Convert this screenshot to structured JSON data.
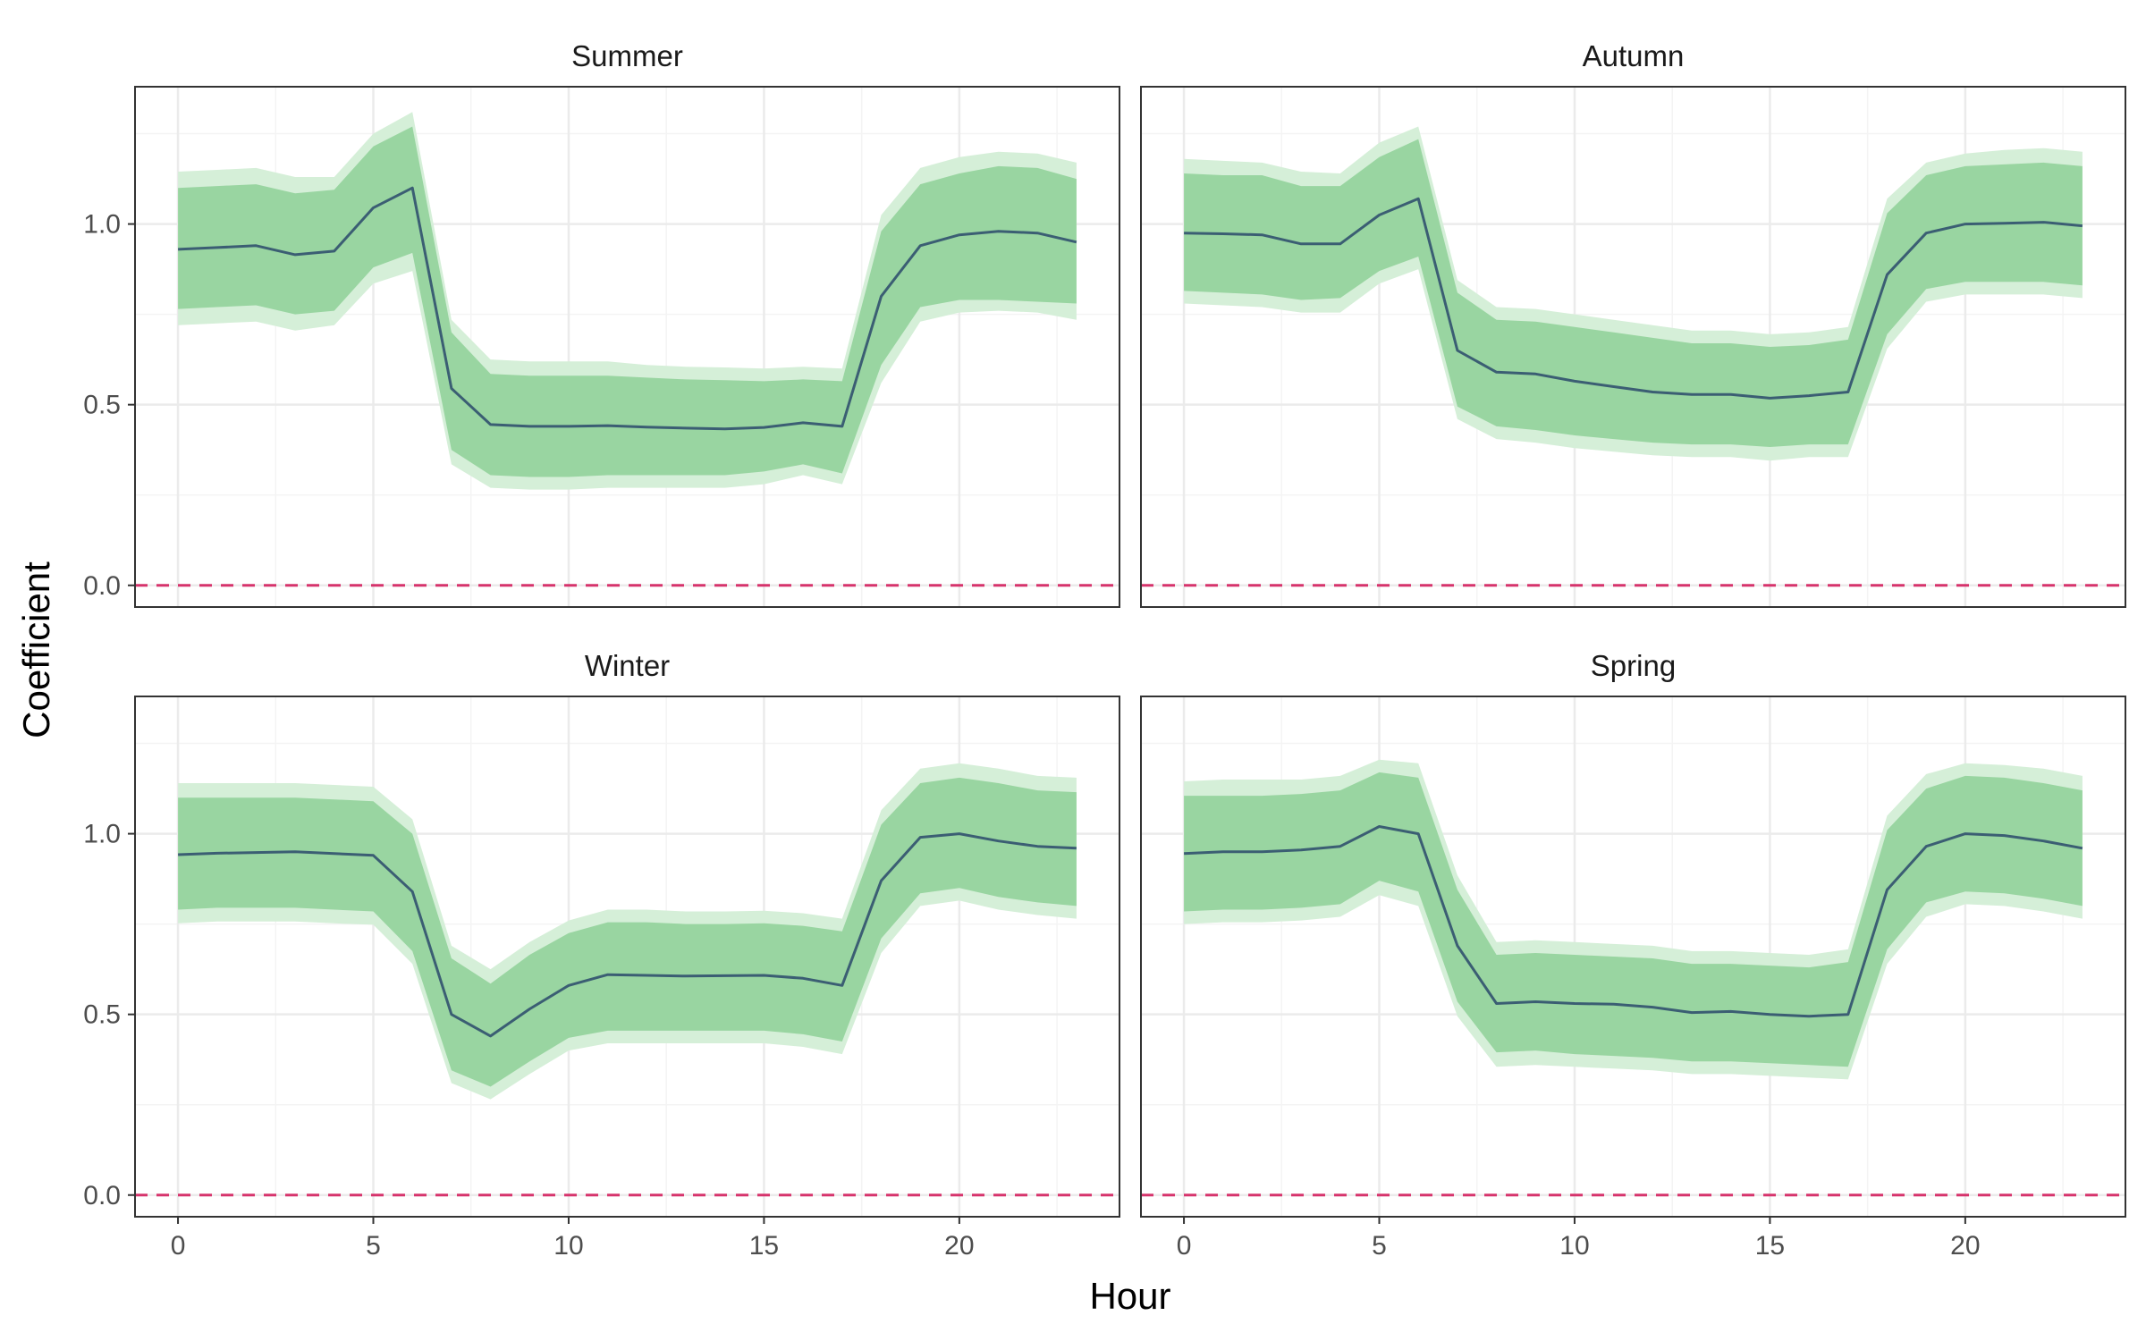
{
  "chart_data": {
    "type": "line",
    "xlabel": "Hour",
    "ylabel": "Coefficient",
    "xlim": [
      -1.1,
      24.1
    ],
    "ylim": [
      -0.06,
      1.38
    ],
    "x_ticks": [
      0,
      5,
      10,
      15,
      20
    ],
    "y_ticks": [
      0.0,
      0.5,
      1.0
    ],
    "y_tick_labels": [
      "0.0",
      "0.5",
      "1.0"
    ],
    "reference_line": {
      "y": 0,
      "style": "dashed",
      "color": "#d6336c"
    },
    "grid": true,
    "colors": {
      "line": "#3b5e73",
      "band_inner": "#99d5a1",
      "band_outer": "#d5efd8",
      "panel_border": "#333333",
      "grid_major": "#ebebeb",
      "grid_minor": "#f4f4f4"
    },
    "x": [
      0,
      1,
      2,
      3,
      4,
      5,
      6,
      7,
      8,
      9,
      10,
      11,
      12,
      13,
      14,
      15,
      16,
      17,
      18,
      19,
      20,
      21,
      22,
      23
    ],
    "panels": [
      {
        "title": "Summer",
        "values": [
          0.93,
          0.935,
          0.94,
          0.915,
          0.925,
          1.045,
          1.1,
          0.545,
          0.445,
          0.44,
          0.44,
          0.442,
          0.438,
          0.435,
          0.433,
          0.437,
          0.45,
          0.44,
          0.8,
          0.94,
          0.97,
          0.98,
          0.975,
          0.95
        ],
        "inner_low": [
          0.765,
          0.77,
          0.775,
          0.75,
          0.76,
          0.88,
          0.92,
          0.375,
          0.305,
          0.3,
          0.3,
          0.305,
          0.305,
          0.305,
          0.305,
          0.315,
          0.335,
          0.31,
          0.61,
          0.77,
          0.79,
          0.79,
          0.785,
          0.78
        ],
        "inner_high": [
          1.1,
          1.105,
          1.11,
          1.085,
          1.095,
          1.215,
          1.27,
          0.7,
          0.585,
          0.58,
          0.58,
          0.58,
          0.575,
          0.57,
          0.568,
          0.565,
          0.57,
          0.565,
          0.98,
          1.11,
          1.14,
          1.16,
          1.155,
          1.125
        ],
        "outer_low": [
          0.72,
          0.725,
          0.73,
          0.705,
          0.72,
          0.835,
          0.87,
          0.335,
          0.27,
          0.265,
          0.265,
          0.27,
          0.27,
          0.27,
          0.27,
          0.28,
          0.305,
          0.28,
          0.56,
          0.73,
          0.755,
          0.76,
          0.755,
          0.735
        ],
        "outer_high": [
          1.145,
          1.15,
          1.155,
          1.13,
          1.13,
          1.25,
          1.31,
          0.735,
          0.625,
          0.62,
          0.62,
          0.62,
          0.61,
          0.605,
          0.603,
          0.6,
          0.605,
          0.6,
          1.025,
          1.155,
          1.185,
          1.2,
          1.195,
          1.17
        ]
      },
      {
        "title": "Autumn",
        "values": [
          0.975,
          0.973,
          0.97,
          0.945,
          0.945,
          1.025,
          1.07,
          0.65,
          0.59,
          0.585,
          0.565,
          0.55,
          0.535,
          0.528,
          0.528,
          0.518,
          0.525,
          0.535,
          0.86,
          0.975,
          1.0,
          1.002,
          1.005,
          0.995
        ],
        "inner_low": [
          0.815,
          0.81,
          0.805,
          0.79,
          0.795,
          0.87,
          0.91,
          0.495,
          0.44,
          0.43,
          0.415,
          0.405,
          0.395,
          0.39,
          0.39,
          0.383,
          0.39,
          0.39,
          0.695,
          0.82,
          0.84,
          0.84,
          0.84,
          0.83
        ],
        "inner_high": [
          1.14,
          1.135,
          1.135,
          1.105,
          1.105,
          1.185,
          1.235,
          0.81,
          0.735,
          0.73,
          0.715,
          0.7,
          0.685,
          0.67,
          0.67,
          0.66,
          0.665,
          0.68,
          1.03,
          1.135,
          1.16,
          1.165,
          1.17,
          1.16
        ],
        "outer_low": [
          0.78,
          0.775,
          0.77,
          0.755,
          0.755,
          0.835,
          0.875,
          0.46,
          0.405,
          0.395,
          0.38,
          0.37,
          0.36,
          0.355,
          0.355,
          0.345,
          0.355,
          0.355,
          0.655,
          0.785,
          0.805,
          0.805,
          0.805,
          0.795
        ],
        "outer_high": [
          1.18,
          1.175,
          1.17,
          1.145,
          1.14,
          1.225,
          1.27,
          0.845,
          0.77,
          0.765,
          0.75,
          0.735,
          0.72,
          0.705,
          0.705,
          0.695,
          0.7,
          0.715,
          1.07,
          1.17,
          1.195,
          1.205,
          1.21,
          1.2
        ]
      },
      {
        "title": "Winter",
        "values": [
          0.942,
          0.946,
          0.948,
          0.95,
          0.945,
          0.94,
          0.84,
          0.5,
          0.44,
          0.515,
          0.58,
          0.61,
          0.608,
          0.606,
          0.607,
          0.608,
          0.6,
          0.58,
          0.87,
          0.99,
          1.0,
          0.98,
          0.965,
          0.96
        ],
        "inner_low": [
          0.79,
          0.795,
          0.795,
          0.795,
          0.79,
          0.785,
          0.675,
          0.345,
          0.3,
          0.37,
          0.435,
          0.455,
          0.455,
          0.455,
          0.455,
          0.455,
          0.445,
          0.425,
          0.71,
          0.835,
          0.85,
          0.825,
          0.81,
          0.8
        ],
        "inner_high": [
          1.1,
          1.1,
          1.1,
          1.1,
          1.095,
          1.09,
          1.0,
          0.655,
          0.585,
          0.665,
          0.725,
          0.755,
          0.755,
          0.75,
          0.75,
          0.752,
          0.745,
          0.73,
          1.025,
          1.14,
          1.155,
          1.14,
          1.12,
          1.115
        ],
        "outer_low": [
          0.752,
          0.757,
          0.757,
          0.757,
          0.752,
          0.748,
          0.64,
          0.31,
          0.265,
          0.335,
          0.4,
          0.42,
          0.42,
          0.42,
          0.42,
          0.42,
          0.41,
          0.39,
          0.67,
          0.8,
          0.815,
          0.79,
          0.775,
          0.765
        ],
        "outer_high": [
          1.14,
          1.14,
          1.14,
          1.14,
          1.135,
          1.13,
          1.04,
          0.69,
          0.625,
          0.7,
          0.76,
          0.79,
          0.79,
          0.785,
          0.785,
          0.787,
          0.78,
          0.765,
          1.065,
          1.18,
          1.195,
          1.18,
          1.16,
          1.155
        ]
      },
      {
        "title": "Spring",
        "values": [
          0.945,
          0.95,
          0.95,
          0.955,
          0.965,
          1.02,
          1.0,
          0.69,
          0.53,
          0.535,
          0.53,
          0.528,
          0.52,
          0.505,
          0.508,
          0.5,
          0.495,
          0.5,
          0.845,
          0.965,
          1.0,
          0.995,
          0.98,
          0.96
        ],
        "inner_low": [
          0.785,
          0.79,
          0.79,
          0.795,
          0.805,
          0.87,
          0.84,
          0.535,
          0.395,
          0.4,
          0.39,
          0.385,
          0.38,
          0.37,
          0.37,
          0.365,
          0.36,
          0.355,
          0.68,
          0.81,
          0.84,
          0.835,
          0.82,
          0.8
        ],
        "inner_high": [
          1.105,
          1.105,
          1.105,
          1.11,
          1.12,
          1.17,
          1.155,
          0.845,
          0.665,
          0.67,
          0.665,
          0.66,
          0.655,
          0.64,
          0.64,
          0.635,
          0.63,
          0.645,
          1.01,
          1.125,
          1.16,
          1.155,
          1.14,
          1.12
        ],
        "outer_low": [
          0.75,
          0.755,
          0.755,
          0.76,
          0.77,
          0.83,
          0.8,
          0.495,
          0.355,
          0.36,
          0.355,
          0.35,
          0.345,
          0.335,
          0.335,
          0.33,
          0.325,
          0.32,
          0.64,
          0.77,
          0.805,
          0.8,
          0.785,
          0.765
        ],
        "outer_high": [
          1.145,
          1.15,
          1.15,
          1.15,
          1.16,
          1.205,
          1.195,
          0.885,
          0.7,
          0.705,
          0.7,
          0.695,
          0.69,
          0.675,
          0.675,
          0.67,
          0.665,
          0.68,
          1.05,
          1.165,
          1.195,
          1.19,
          1.18,
          1.16
        ]
      }
    ]
  }
}
